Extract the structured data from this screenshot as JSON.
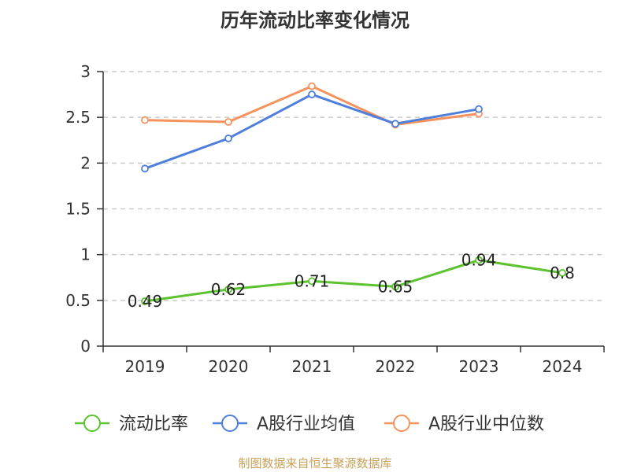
{
  "chart_data": {
    "type": "line",
    "title": "历年流动比率变化情况",
    "categories": [
      "2019",
      "2020",
      "2021",
      "2022",
      "2023",
      "2024"
    ],
    "ylim": [
      0,
      3
    ],
    "yticks": [
      "0",
      "0.5",
      "1",
      "1.5",
      "2",
      "2.5",
      "3"
    ],
    "grid": true,
    "legend_position": "bottom",
    "series": [
      {
        "name": "流动比率",
        "color": "#5cc22e",
        "values": [
          0.49,
          0.62,
          0.71,
          0.65,
          0.94,
          0.8
        ],
        "labels": [
          "0.49",
          "0.62",
          "0.71",
          "0.65",
          "0.94",
          "0.8"
        ]
      },
      {
        "name": "A股行业均值",
        "color": "#4f7fdc",
        "values": [
          1.94,
          2.27,
          2.75,
          2.43,
          2.59,
          null
        ]
      },
      {
        "name": "A股行业中位数",
        "color": "#f4935e",
        "values": [
          2.47,
          2.45,
          2.84,
          2.42,
          2.54,
          null
        ]
      }
    ]
  },
  "footer": "制图数据来自恒生聚源数据库"
}
